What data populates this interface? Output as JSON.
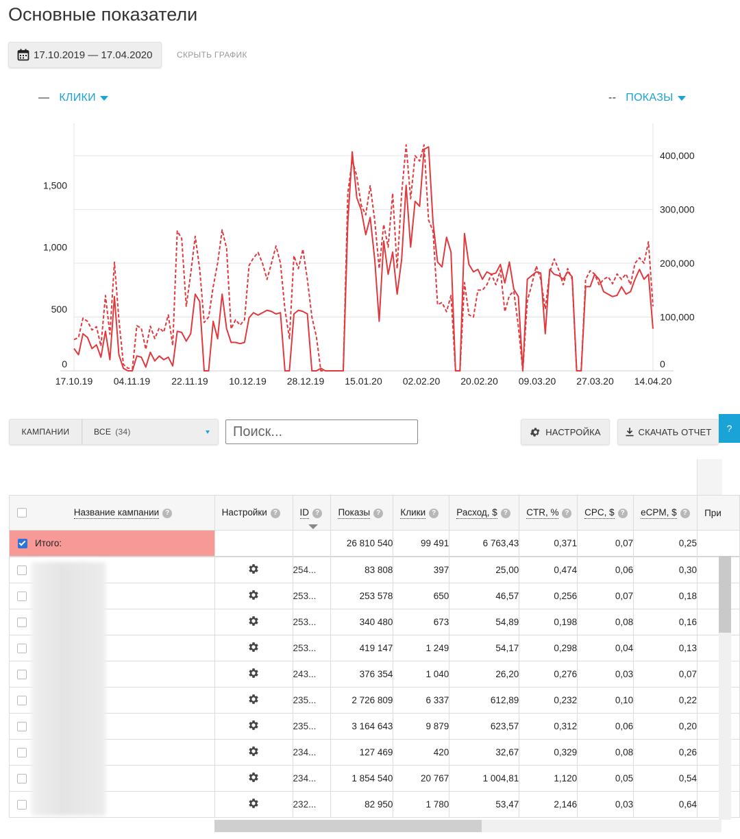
{
  "page": {
    "title": "Основные показатели"
  },
  "date_range": {
    "label": "17.10.2019 — 17.04.2020",
    "icon": "calendar-icon"
  },
  "hide_chart_label": "СКРЫТЬ ГРАФИК",
  "legend": {
    "left": {
      "dash": "—",
      "label": "КЛИКИ"
    },
    "right": {
      "dash": "--",
      "label": "ПОКАЗЫ"
    }
  },
  "chart_data": {
    "type": "line",
    "x_tick_labels": [
      "17.10.19",
      "04.11.19",
      "22.11.19",
      "10.12.19",
      "28.12.19",
      "15.01.20",
      "02.02.20",
      "20.02.20",
      "09.03.20",
      "27.03.20",
      "14.04.20"
    ],
    "x_range": [
      "17.10.19",
      "17.04.20"
    ],
    "y_left": {
      "ticks": [
        0,
        500,
        1000,
        1500
      ],
      "tick_labels": [
        "0",
        "500",
        "1,000",
        "1,500"
      ],
      "range": [
        0,
        2000
      ]
    },
    "y_right": {
      "ticks": [
        0,
        100000,
        200000,
        300000,
        400000
      ],
      "tick_labels": [
        "0",
        "100,000",
        "200,000",
        "300,000",
        "400,000"
      ],
      "range": [
        0,
        460000
      ]
    },
    "grid": true,
    "series": [
      {
        "name": "КЛИКИ",
        "axis": "left",
        "style": "solid",
        "color": "#e0383d",
        "values": [
          180,
          130,
          300,
          270,
          180,
          210,
          110,
          320,
          90,
          600,
          130,
          20,
          0,
          0,
          120,
          110,
          30,
          150,
          80,
          120,
          90,
          110,
          40,
          320,
          310,
          240,
          300,
          620,
          560,
          0,
          0,
          400,
          260,
          620,
          340,
          230,
          230,
          220,
          230,
          430,
          470,
          450,
          470,
          490,
          480,
          460,
          470,
          0,
          0,
          460,
          490,
          480,
          460,
          0,
          0,
          20,
          0,
          0,
          0,
          0,
          0,
          1200,
          1770,
          1400,
          1300,
          1100,
          1240,
          900,
          400,
          1050,
          780,
          960,
          620,
          900,
          1500,
          1000,
          1370,
          1330,
          1790,
          1810,
          1200,
          880,
          840,
          1080,
          960,
          0,
          0,
          1110,
          860,
          800,
          820,
          740,
          800,
          780,
          790,
          860,
          710,
          880,
          660,
          600,
          0,
          740,
          770,
          800,
          790,
          300,
          820,
          780,
          770,
          740,
          800,
          760,
          0,
          0,
          680,
          680,
          780,
          740,
          640,
          620,
          600,
          610,
          680,
          620,
          640,
          740,
          820,
          740,
          780,
          340
        ]
      },
      {
        "name": "ПОКАЗЫ",
        "axis": "right",
        "style": "dashed",
        "color": "#e0383d",
        "values": [
          58000,
          62000,
          98000,
          92000,
          76000,
          82000,
          46000,
          140000,
          68000,
          202000,
          96000,
          12000,
          5000,
          4000,
          84000,
          79000,
          40000,
          83000,
          60000,
          80000,
          72000,
          104000,
          47000,
          260000,
          246000,
          120000,
          180000,
          250000,
          190000,
          90000,
          100000,
          156000,
          200000,
          262000,
          228000,
          78000,
          95000,
          85000,
          95000,
          196000,
          210000,
          220000,
          200000,
          170000,
          200000,
          232000,
          200000,
          114000,
          60000,
          214000,
          190000,
          226000,
          170000,
          100000,
          64000,
          0,
          0,
          0,
          0,
          0,
          0,
          330000,
          392000,
          362000,
          308000,
          290000,
          344000,
          280000,
          190000,
          272000,
          230000,
          330000,
          190000,
          330000,
          420000,
          320000,
          400000,
          390000,
          420000,
          280000,
          260000,
          123000,
          127000,
          110000,
          140000,
          0,
          0,
          164000,
          104000,
          100000,
          150000,
          150000,
          160000,
          180000,
          160000,
          187000,
          110000,
          140000,
          148000,
          83000,
          0,
          130000,
          160000,
          195000,
          170000,
          115000,
          183000,
          208000,
          188000,
          160000,
          190000,
          170000,
          0,
          0,
          170000,
          186000,
          180000,
          160000,
          170000,
          175000,
          162000,
          180000,
          170000,
          180000,
          160000,
          200000,
          210000,
          200000,
          240000,
          120000
        ]
      }
    ]
  },
  "filters": {
    "campaigns_label": "КАМПАНИИ",
    "all_label": "ВСЕ",
    "all_count": "(34)"
  },
  "search": {
    "placeholder": "Поиск..."
  },
  "buttons": {
    "settings": "НАСТРОЙКА",
    "download": "СКАЧАТЬ ОТЧЕТ",
    "help": "?"
  },
  "table": {
    "columns": {
      "name": "Название кампании",
      "settings": "Настройки",
      "id": "ID",
      "shows": "Показы",
      "clicks": "Клики",
      "spend": "Расход, $",
      "ctr": "CTR, %",
      "cpc": "CPC, $",
      "ecpm": "eCPM, $",
      "extra": "При"
    },
    "total": {
      "label": "Итого:",
      "shows": "26 810 540",
      "clicks": "99 491",
      "spend": "6 763,43",
      "ctr": "0,371",
      "cpc": "0,07",
      "ecpm": "0,25"
    },
    "rows": [
      {
        "id": "254...",
        "shows": "83 808",
        "clicks": "397",
        "spend": "25,00",
        "ctr": "0,474",
        "cpc": "0,06",
        "ecpm": "0,30"
      },
      {
        "id": "253...",
        "shows": "253 578",
        "clicks": "650",
        "spend": "46,57",
        "ctr": "0,256",
        "cpc": "0,07",
        "ecpm": "0,18"
      },
      {
        "id": "253...",
        "shows": "340 480",
        "clicks": "673",
        "spend": "54,89",
        "ctr": "0,198",
        "cpc": "0,08",
        "ecpm": "0,16"
      },
      {
        "id": "253...",
        "shows": "419 147",
        "clicks": "1 249",
        "spend": "54,17",
        "ctr": "0,298",
        "cpc": "0,04",
        "ecpm": "0,13"
      },
      {
        "id": "243...",
        "shows": "376 354",
        "clicks": "1 040",
        "spend": "26,20",
        "ctr": "0,276",
        "cpc": "0,03",
        "ecpm": "0,07"
      },
      {
        "id": "235...",
        "shows": "2 726 809",
        "clicks": "6 337",
        "spend": "612,89",
        "ctr": "0,232",
        "cpc": "0,10",
        "ecpm": "0,22"
      },
      {
        "id": "235...",
        "shows": "3 164 643",
        "clicks": "9 879",
        "spend": "623,57",
        "ctr": "0,312",
        "cpc": "0,06",
        "ecpm": "0,20"
      },
      {
        "id": "234...",
        "shows": "127 469",
        "clicks": "420",
        "spend": "32,67",
        "ctr": "0,329",
        "cpc": "0,08",
        "ecpm": "0,26"
      },
      {
        "id": "234...",
        "shows": "1 854 540",
        "clicks": "20 767",
        "spend": "1 004,81",
        "ctr": "1,120",
        "cpc": "0,05",
        "ecpm": "0,54"
      },
      {
        "id": "232...",
        "shows": "82 950",
        "clicks": "1 780",
        "spend": "53,47",
        "ctr": "2,146",
        "cpc": "0,03",
        "ecpm": "0,64"
      }
    ]
  }
}
